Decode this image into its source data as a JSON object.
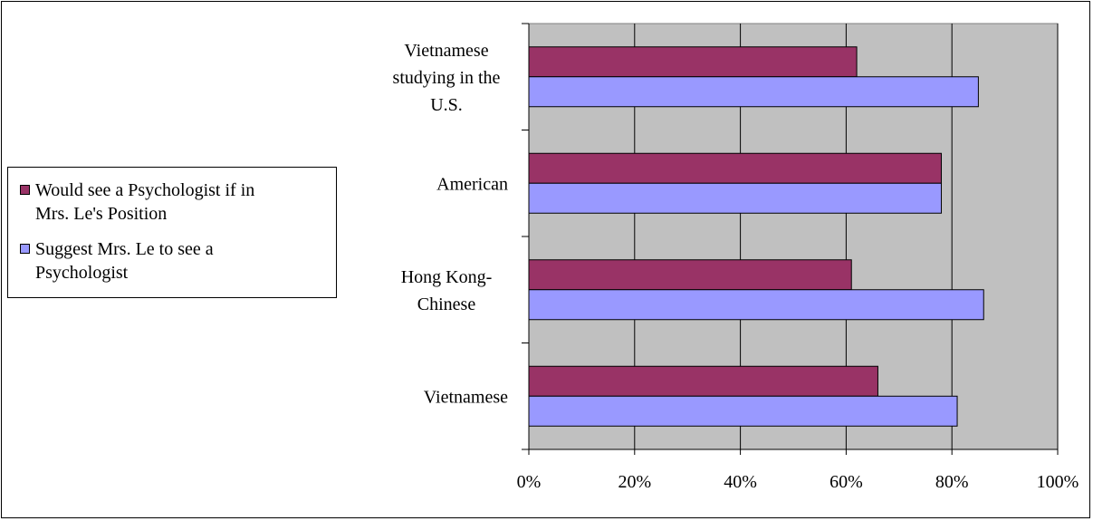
{
  "chart_data": {
    "type": "bar",
    "orientation": "horizontal",
    "categories": [
      "Vietnamese studying in the U.S.",
      "American",
      "Hong Kong-Chinese",
      "Vietnamese"
    ],
    "category_lines": [
      [
        "Vietnamese",
        "studying in the",
        "U.S."
      ],
      [
        "American"
      ],
      [
        "Hong Kong-",
        "Chinese"
      ],
      [
        "Vietnamese"
      ]
    ],
    "series": [
      {
        "name": "Would see a Psychologist if in Mrs. Le's Position",
        "legend_lines": [
          "Would see a Psychologist if in",
          "Mrs. Le's Position"
        ],
        "color": "#993366",
        "values": [
          0.62,
          0.78,
          0.61,
          0.66
        ]
      },
      {
        "name": "Suggest Mrs. Le to see a Psychologist",
        "legend_lines": [
          "Suggest Mrs. Le to see a",
          "Psychologist"
        ],
        "color": "#9999FF",
        "values": [
          0.85,
          0.78,
          0.86,
          0.81
        ]
      }
    ],
    "xlim": [
      0,
      1
    ],
    "xticks": [
      0,
      0.2,
      0.4,
      0.6,
      0.8,
      1.0
    ],
    "xtick_labels": [
      "0%",
      "20%",
      "40%",
      "60%",
      "80%",
      "100%"
    ],
    "plot_background": "#C0C0C0",
    "grid": "vertical",
    "legend_position": "left"
  }
}
